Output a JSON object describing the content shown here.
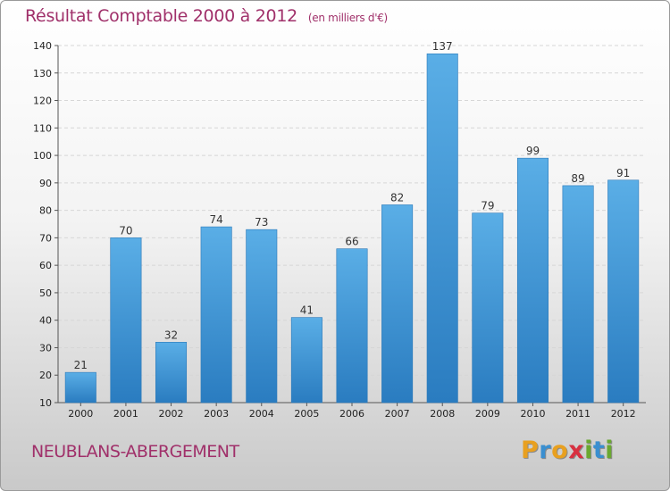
{
  "title": "Résultat Comptable 2000 à 2012",
  "subtitle": "(en milliers d'€)",
  "location": "NEUBLANS-ABERGEMENT",
  "logo": {
    "text": "Proxiti",
    "letters": [
      "P",
      "r",
      "o",
      "x",
      "i",
      "t",
      "i"
    ],
    "colors": [
      "#e8a020",
      "#3a8fd0",
      "#e8a020",
      "#d83040",
      "#6aa830",
      "#3a8fd0",
      "#6aa830"
    ]
  },
  "colors": {
    "title": "#a0306a",
    "bar_top": "#5aaee6",
    "bar_bottom": "#2a7cc0"
  },
  "chart_data": {
    "type": "bar",
    "title": "Résultat Comptable 2000 à 2012",
    "xlabel": "",
    "ylabel": "",
    "categories": [
      "2000",
      "2001",
      "2002",
      "2003",
      "2004",
      "2005",
      "2006",
      "2007",
      "2008",
      "2009",
      "2010",
      "2011",
      "2012"
    ],
    "values": [
      21,
      70,
      32,
      74,
      73,
      41,
      66,
      82,
      137,
      79,
      99,
      89,
      91
    ],
    "ylim": [
      10,
      140
    ],
    "yticks": [
      10,
      20,
      30,
      40,
      50,
      60,
      70,
      80,
      90,
      100,
      110,
      120,
      130,
      140
    ],
    "grid": true,
    "legend": "none"
  }
}
